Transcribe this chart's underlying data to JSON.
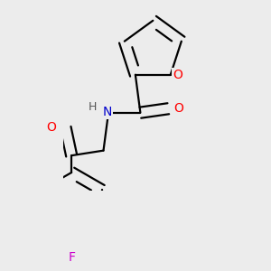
{
  "bg_color": "#ececec",
  "bond_color": "#000000",
  "bond_width": 1.6,
  "dbo": 0.055,
  "atom_colors": {
    "O": "#ff0000",
    "N": "#0000cc",
    "F": "#cc00cc",
    "H": "#555555",
    "C": "#000000"
  },
  "font_size": 10,
  "fig_size": [
    3.0,
    3.0
  ],
  "dpi": 100
}
